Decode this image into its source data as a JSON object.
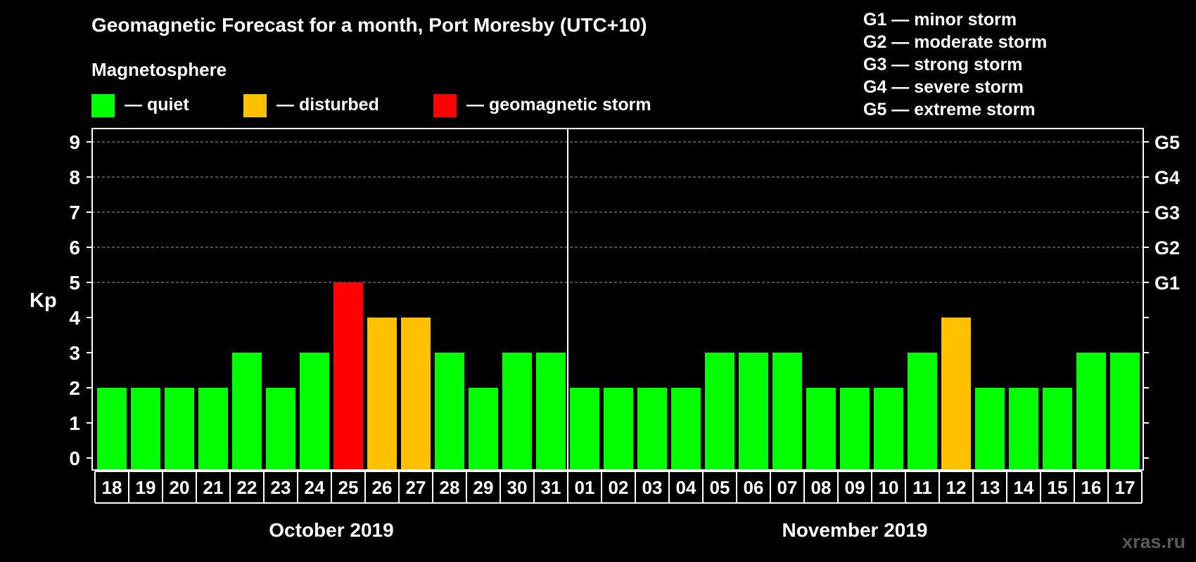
{
  "header": {
    "title": "Geomagnetic Forecast for a month, Port Moresby (UTC+10)",
    "section_label": "Magnetosphere"
  },
  "legend": {
    "quiet": {
      "label": "— quiet",
      "color": "#00ff00"
    },
    "disturbed": {
      "label": "— disturbed",
      "color": "#ffc000"
    },
    "storm": {
      "label": "— geomagnetic storm",
      "color": "#ff0000"
    }
  },
  "g_scale": [
    "G1 — minor storm",
    "G2 — moderate storm",
    "G3 — strong storm",
    "G4 — severe storm",
    "G5 — extreme storm"
  ],
  "watermark": "xras.ru",
  "chart_data": {
    "type": "bar",
    "ylabel": "Kp",
    "ylim": [
      0,
      9
    ],
    "yticks": [
      0,
      1,
      2,
      3,
      4,
      5,
      6,
      7,
      8,
      9
    ],
    "right_axis_labels": [
      {
        "kp": 5,
        "label": "G1"
      },
      {
        "kp": 6,
        "label": "G2"
      },
      {
        "kp": 7,
        "label": "G3"
      },
      {
        "kp": 8,
        "label": "G4"
      },
      {
        "kp": 9,
        "label": "G5"
      }
    ],
    "grid_dashed_from": 5,
    "categories": [
      "18",
      "19",
      "20",
      "21",
      "22",
      "23",
      "24",
      "25",
      "26",
      "27",
      "28",
      "29",
      "30",
      "31",
      "01",
      "02",
      "03",
      "04",
      "05",
      "06",
      "07",
      "08",
      "09",
      "10",
      "11",
      "12",
      "13",
      "14",
      "15",
      "16",
      "17"
    ],
    "values": [
      2,
      2,
      2,
      2,
      3,
      2,
      3,
      5,
      4,
      4,
      3,
      2,
      3,
      3,
      2,
      2,
      2,
      2,
      3,
      3,
      3,
      2,
      2,
      2,
      3,
      4,
      2,
      2,
      2,
      3,
      3
    ],
    "colors": {
      "quiet": "#00ff00",
      "disturbed": "#ffc000",
      "storm": "#ff0000"
    },
    "months": [
      {
        "label": "October 2019",
        "count": 14
      },
      {
        "label": "November 2019",
        "count": 17
      }
    ]
  }
}
